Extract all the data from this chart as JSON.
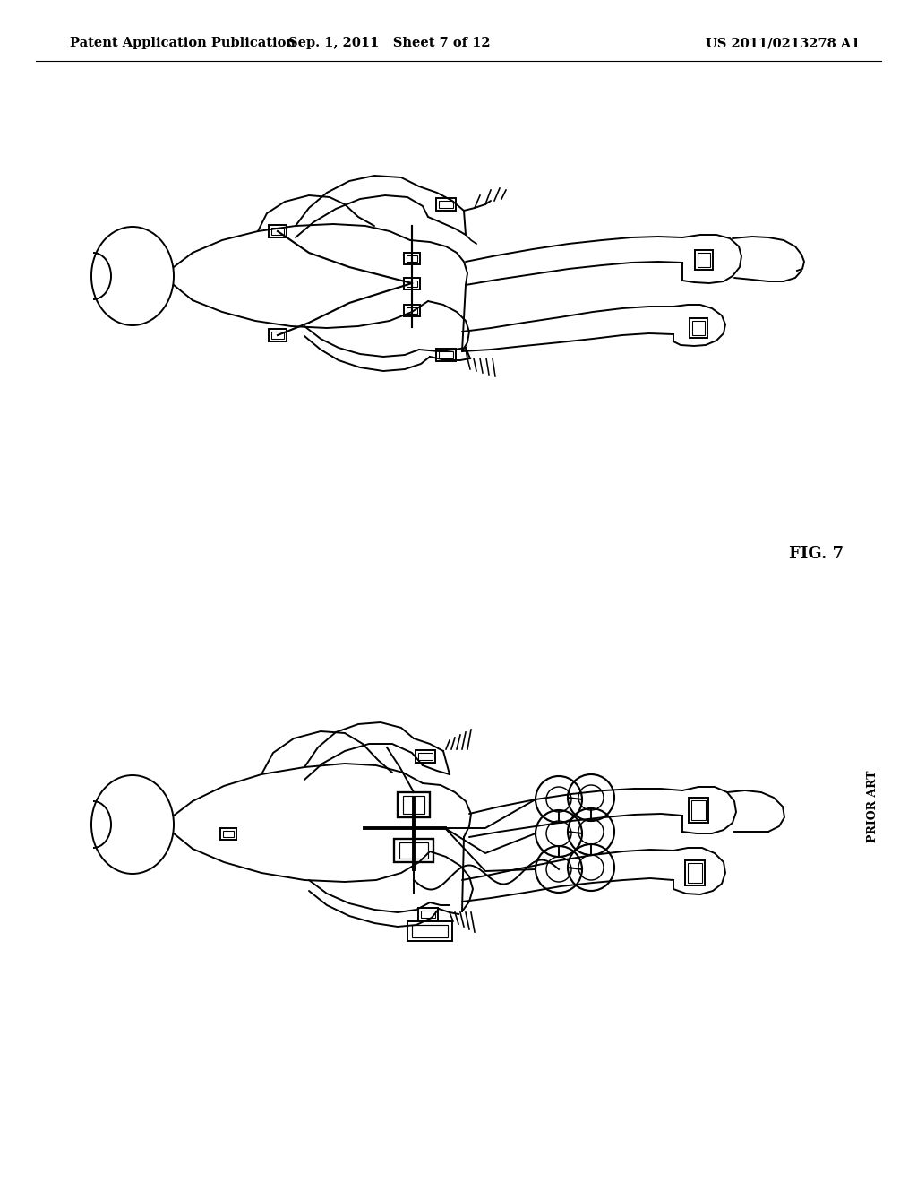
{
  "background_color": "#ffffff",
  "header_left": "Patent Application Publication",
  "header_mid": "Sep. 1, 2011   Sheet 7 of 12",
  "header_right": "US 2011/0213278 A1",
  "line_color": "#000000",
  "fig7_label": "FIG. 7",
  "prior_art_label": "PRIOR ART",
  "fig_width": 10.24,
  "fig_height": 13.2
}
